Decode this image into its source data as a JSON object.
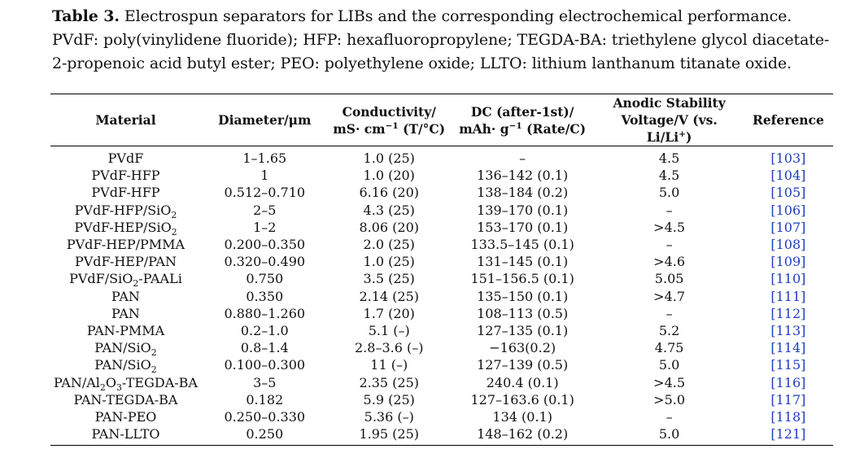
{
  "caption": {
    "lead": "Table 3.",
    "text": "Electrospun separators for LIBs and the corresponding electrochemical performance. PVdF: poly(vinylidene fluoride); HFP: hexafluoropropylene; TEGDA-BA: triethylene glycol diacetate-2-propenoic acid butyl ester; PEO: polyethylene oxide; LLTO: lithium lanthanum titanate oxide."
  },
  "headers": {
    "material": "Material",
    "diameter": "Diameter/μm",
    "conductivity_line1": "Conductivity/",
    "conductivity_line2_pre": "mS· cm",
    "conductivity_line2_sup": "−1",
    "conductivity_line2_post": " (T/°C)",
    "dc_line1": "DC (after-1st)/",
    "dc_line2_pre": "mAh· g",
    "dc_line2_sup": "−1",
    "dc_line2_post": " (Rate/C)",
    "anodic_line1": "Anodic Stability",
    "anodic_line2_pre": "Voltage/V (vs. Li/Li",
    "anodic_line2_sup": "+",
    "anodic_line2_post": ")",
    "reference": "Reference"
  },
  "rows": [
    {
      "m1": "PVdF",
      "sub1": "",
      "m2": "",
      "sub2": "",
      "m3": "",
      "diameter": "1–1.65",
      "conductivity": "1.0 (25)",
      "dc": "–",
      "anodic": "4.5",
      "ref": "[103]"
    },
    {
      "m1": "PVdF-HFP",
      "sub1": "",
      "m2": "",
      "sub2": "",
      "m3": "",
      "diameter": "1",
      "conductivity": "1.0 (20)",
      "dc": "136–142 (0.1)",
      "anodic": "4.5",
      "ref": "[104]"
    },
    {
      "m1": "PVdF-HFP",
      "sub1": "",
      "m2": "",
      "sub2": "",
      "m3": "",
      "diameter": "0.512–0.710",
      "conductivity": "6.16 (20)",
      "dc": "138–184 (0.2)",
      "anodic": "5.0",
      "ref": "[105]"
    },
    {
      "m1": "PVdF-HFP/SiO",
      "sub1": "2",
      "m2": "",
      "sub2": "",
      "m3": "",
      "diameter": "2–5",
      "conductivity": "4.3 (25)",
      "dc": "139–170 (0.1)",
      "anodic": "–",
      "ref": "[106]"
    },
    {
      "m1": "PVdF-HEP/SiO",
      "sub1": "2",
      "m2": "",
      "sub2": "",
      "m3": "",
      "diameter": "1–2",
      "conductivity": "8.06 (20)",
      "dc": "153–170 (0.1)",
      "anodic": ">4.5",
      "ref": "[107]"
    },
    {
      "m1": "PVdF-HEP/PMMA",
      "sub1": "",
      "m2": "",
      "sub2": "",
      "m3": "",
      "diameter": "0.200–0.350",
      "conductivity": "2.0 (25)",
      "dc": "133.5–145 (0.1)",
      "anodic": "–",
      "ref": "[108]"
    },
    {
      "m1": "PVdF-HEP/PAN",
      "sub1": "",
      "m2": "",
      "sub2": "",
      "m3": "",
      "diameter": "0.320–0.490",
      "conductivity": "1.0 (25)",
      "dc": "131–145 (0.1)",
      "anodic": ">4.6",
      "ref": "[109]"
    },
    {
      "m1": "PVdF/SiO",
      "sub1": "2",
      "m2": "-PAALi",
      "sub2": "",
      "m3": "",
      "diameter": "0.750",
      "conductivity": "3.5 (25)",
      "dc": "151–156.5 (0.1)",
      "anodic": "5.05",
      "ref": "[110]"
    },
    {
      "m1": "PAN",
      "sub1": "",
      "m2": "",
      "sub2": "",
      "m3": "",
      "diameter": "0.350",
      "conductivity": "2.14 (25)",
      "dc": "135–150 (0.1)",
      "anodic": ">4.7",
      "ref": "[111]"
    },
    {
      "m1": "PAN",
      "sub1": "",
      "m2": "",
      "sub2": "",
      "m3": "",
      "diameter": "0.880–1.260",
      "conductivity": "1.7 (20)",
      "dc": "108–113 (0.5)",
      "anodic": "–",
      "ref": "[112]"
    },
    {
      "m1": "PAN-PMMA",
      "sub1": "",
      "m2": "",
      "sub2": "",
      "m3": "",
      "diameter": "0.2–1.0",
      "conductivity": "5.1 (–)",
      "dc": "127–135 (0.1)",
      "anodic": "5.2",
      "ref": "[113]"
    },
    {
      "m1": "PAN/SiO",
      "sub1": "2",
      "m2": "",
      "sub2": "",
      "m3": "",
      "diameter": "0.8–1.4",
      "conductivity": "2.8–3.6 (–)",
      "dc": "−163(0.2)",
      "anodic": "4.75",
      "ref": "[114]"
    },
    {
      "m1": "PAN/SiO",
      "sub1": "2",
      "m2": "",
      "sub2": "",
      "m3": "",
      "diameter": "0.100–0.300",
      "conductivity": "11 (–)",
      "dc": "127–139 (0.5)",
      "anodic": "5.0",
      "ref": "[115]"
    },
    {
      "m1": "PAN/Al",
      "sub1": "2",
      "m2": "O",
      "sub2": "3",
      "m3": "-TEGDA-BA",
      "diameter": "3–5",
      "conductivity": "2.35 (25)",
      "dc": "240.4 (0.1)",
      "anodic": ">4.5",
      "ref": "[116]"
    },
    {
      "m1": "PAN-TEGDA-BA",
      "sub1": "",
      "m2": "",
      "sub2": "",
      "m3": "",
      "diameter": "0.182",
      "conductivity": "5.9 (25)",
      "dc": "127–163.6 (0.1)",
      "anodic": ">5.0",
      "ref": "[117]"
    },
    {
      "m1": "PAN-PEO",
      "sub1": "",
      "m2": "",
      "sub2": "",
      "m3": "",
      "diameter": "0.250–0.330",
      "conductivity": "5.36 (–)",
      "dc": "134 (0.1)",
      "anodic": "–",
      "ref": "[118]"
    },
    {
      "m1": "PAN-LLTO",
      "sub1": "",
      "m2": "",
      "sub2": "",
      "m3": "",
      "diameter": "0.250",
      "conductivity": "1.95 (25)",
      "dc": "148–162 (0.2)",
      "anodic": "5.0",
      "ref": "[121]"
    }
  ]
}
